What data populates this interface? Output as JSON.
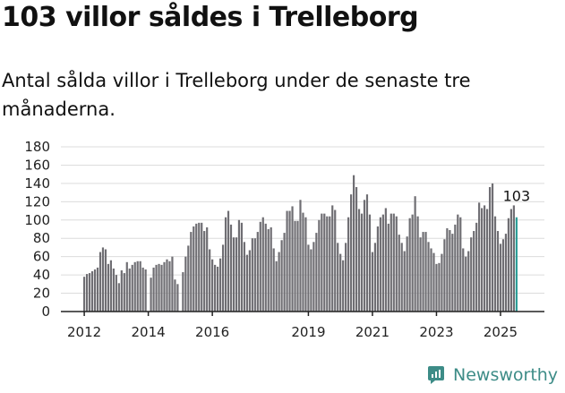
{
  "title": "103 villor såldes i Trelleborg",
  "subtitle": "Antal sålda villor i Trelleborg under de senaste tre månaderna.",
  "brand": {
    "name": "Newsworthy",
    "logo_icon": "newsworthy-logo-icon"
  },
  "colors": {
    "bar": "#6f6e73",
    "highlight": "#2a9d96",
    "brand": "#3d8c87"
  },
  "chart_data": {
    "type": "bar",
    "ylim": [
      0,
      180
    ],
    "y_ticks": [
      "0",
      "20",
      "40",
      "60",
      "80",
      "100",
      "120",
      "140",
      "160",
      "180"
    ],
    "x_ticks": [
      {
        "label": "2012",
        "index": 0
      },
      {
        "label": "2014",
        "index": 24
      },
      {
        "label": "2016",
        "index": 48
      },
      {
        "label": "2019",
        "index": 84
      },
      {
        "label": "2021",
        "index": 108
      },
      {
        "label": "2023",
        "index": 132
      },
      {
        "label": "2025",
        "index": 156
      }
    ],
    "grid": true,
    "highlight_label": "103",
    "series": [
      {
        "values": [
          38,
          41,
          42,
          44,
          46,
          48,
          65,
          70,
          68,
          52,
          56,
          47,
          40,
          31,
          45,
          42,
          54,
          47,
          51,
          54,
          55,
          55,
          48,
          46,
          0,
          37,
          48,
          51,
          52,
          51,
          54,
          57,
          55,
          60,
          35,
          30,
          0,
          43,
          60,
          72,
          87,
          93,
          96,
          97,
          97,
          88,
          92,
          68,
          57,
          51,
          49,
          58,
          73,
          103,
          110,
          95,
          81,
          81,
          100,
          97,
          76,
          62,
          67,
          80,
          80,
          87,
          98,
          103,
          96,
          90,
          92,
          69,
          55,
          65,
          78,
          86,
          110,
          110,
          115,
          99,
          99,
          122,
          108,
          103,
          73,
          68,
          76,
          86,
          100,
          107,
          107,
          104,
          104,
          116,
          111,
          75,
          63,
          56,
          75,
          103,
          128,
          149,
          136,
          112,
          107,
          122,
          128,
          106,
          65,
          75,
          93,
          103,
          106,
          113,
          96,
          107,
          107,
          104,
          84,
          75,
          66,
          82,
          102,
          106,
          126,
          104,
          81,
          87,
          87,
          76,
          69,
          64,
          52,
          53,
          63,
          79,
          91,
          89,
          85,
          95,
          106,
          103,
          69,
          60,
          66,
          81,
          88,
          97,
          119,
          113,
          116,
          112,
          136,
          140,
          104,
          88,
          74,
          79,
          85,
          102,
          112,
          116,
          103
        ]
      }
    ]
  }
}
